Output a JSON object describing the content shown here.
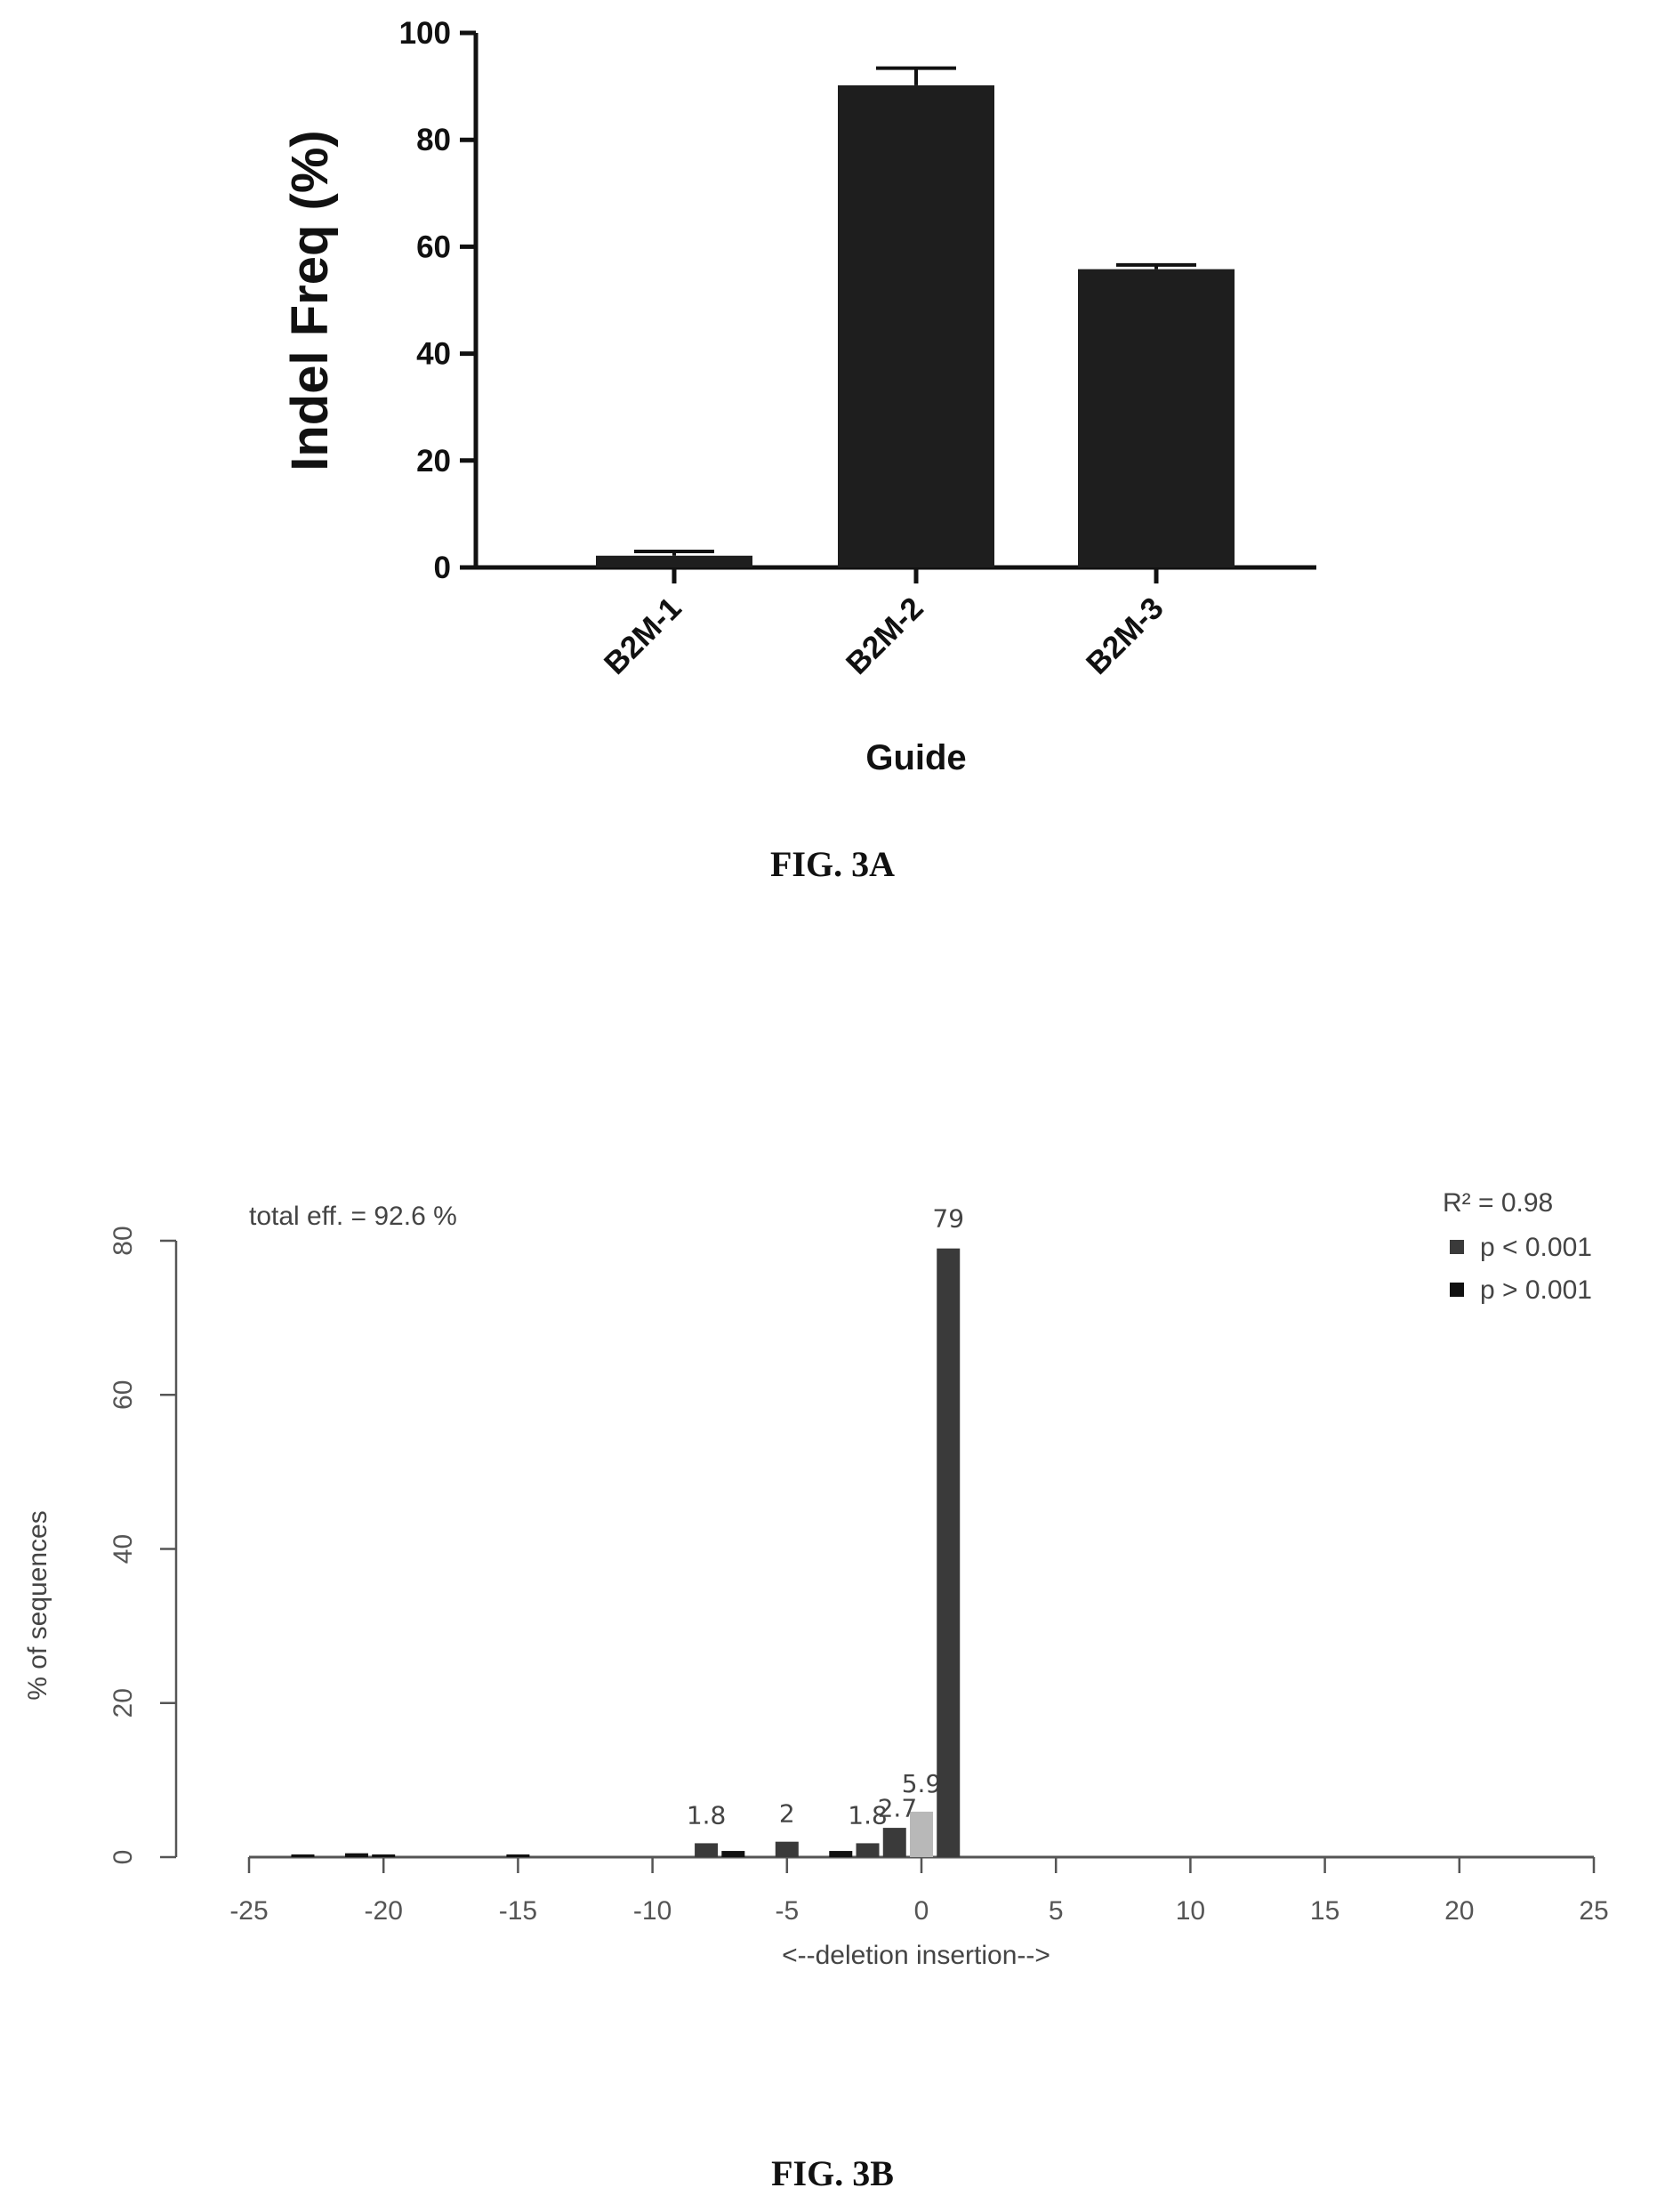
{
  "chart_data": [
    {
      "type": "bar",
      "figure_label": "FIG. 3A",
      "title": "",
      "xlabel": "Guide",
      "ylabel": "Indel Freq (%)",
      "categories": [
        "B2M-1",
        "B2M-2",
        "B2M-3"
      ],
      "values": [
        2.2,
        90.2,
        55.8
      ],
      "error": [
        0.8,
        3.2,
        0.8
      ],
      "ylim": [
        0,
        100
      ],
      "yticks": [
        0,
        20,
        40,
        60,
        80,
        100
      ],
      "grid": false,
      "colors": {
        "bar": "#1e1e1e",
        "axis": "#111111"
      }
    },
    {
      "type": "bar",
      "figure_label": "FIG. 3B",
      "title": "",
      "xlabel": "<--deletion     insertion-->",
      "ylabel": "% of sequences",
      "xlim": [
        -25,
        25
      ],
      "xticks": [
        -25,
        -20,
        -15,
        -10,
        -5,
        0,
        5,
        10,
        15,
        20,
        25
      ],
      "ylim": [
        0,
        80
      ],
      "yticks": [
        0,
        20,
        40,
        60,
        80
      ],
      "grid": false,
      "annotation": "total eff. = 92.6 %",
      "r_squared": "R² = 0.98",
      "legend": {
        "placement": "top-right",
        "entries": [
          {
            "label": "p < 0.001",
            "color": "#3a3a3a"
          },
          {
            "label": "p > 0.001",
            "color": "#111111"
          }
        ]
      },
      "series": [
        {
          "name": "p < 0.001",
          "color": "#3a3a3a",
          "bars": [
            {
              "x": -8,
              "y": 1.8,
              "label": "1.8"
            },
            {
              "x": -5,
              "y": 2.0,
              "label": "2"
            },
            {
              "x": -2,
              "y": 1.8,
              "label": "1.8"
            },
            {
              "x": -1,
              "y": 3.8,
              "label": ""
            },
            {
              "x": 0,
              "y": 5.9,
              "label": "5.9",
              "color": "#b8b8b8"
            },
            {
              "x": 1,
              "y": 79,
              "label": "79"
            }
          ]
        },
        {
          "name": "p > 0.001",
          "color": "#111111",
          "bars": [
            {
              "x": -23,
              "y": 0.3,
              "label": ""
            },
            {
              "x": -21,
              "y": 0.5,
              "label": ""
            },
            {
              "x": -20,
              "y": 0.3,
              "label": ""
            },
            {
              "x": -15,
              "y": 0.3,
              "label": ""
            },
            {
              "x": -7,
              "y": 0.8,
              "label": ""
            },
            {
              "x": -3,
              "y": 0.8,
              "label": ""
            }
          ]
        }
      ],
      "extra_labels": [
        {
          "x": -0.5,
          "y": 2.7,
          "label": "2.7"
        }
      ]
    }
  ]
}
